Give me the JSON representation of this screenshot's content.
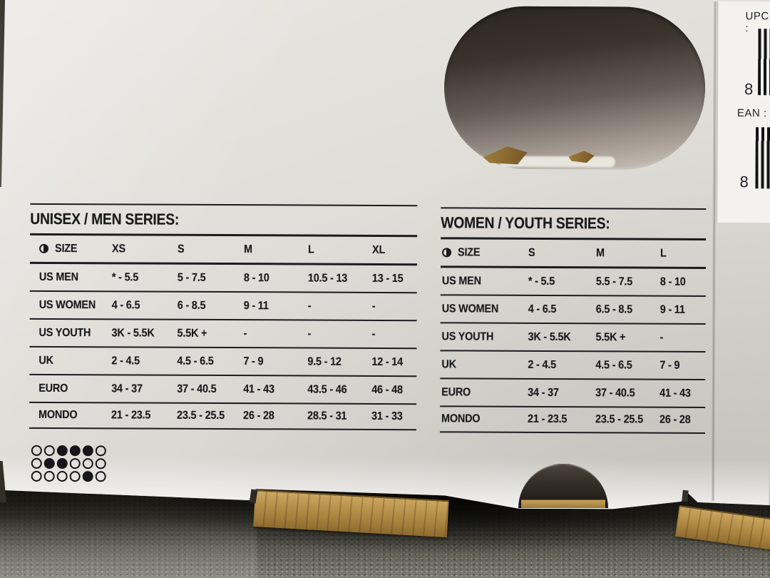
{
  "photo_subject": "shoebox lid with printed shoe size conversion charts, lying on carpet",
  "colors": {
    "ink": "#1b1b1d",
    "box_surface": "#dedbd6",
    "label_white": "#f3f2ef",
    "cardboard": "#ad8742",
    "carpet": "#85847b",
    "shadow": "#18170f"
  },
  "barcode_panel": {
    "upc_label": "UPC :",
    "upc_digit": "8",
    "ean_label": "EAN :",
    "ean_digit": "8"
  },
  "tables": [
    {
      "title": "UNISEX / MEN SERIES:",
      "size_icon": "half-filled-circle",
      "columns": [
        "SIZE",
        "XS",
        "S",
        "M",
        "L",
        "XL"
      ],
      "rows": [
        {
          "label": "US MEN",
          "values": [
            "* - 5.5",
            "5 - 7.5",
            "8 - 10",
            "10.5 - 13",
            "13 - 15"
          ]
        },
        {
          "label": "US WOMEN",
          "values": [
            "4 - 6.5",
            "6 - 8.5",
            "9 - 11",
            "-",
            "-"
          ]
        },
        {
          "label": "US YOUTH",
          "values": [
            "3K - 5.5K",
            "5.5K +",
            "-",
            "-",
            "-"
          ]
        },
        {
          "label": "UK",
          "values": [
            "2 - 4.5",
            "4.5 - 6.5",
            "7 - 9",
            "9.5 - 12",
            "12 - 14"
          ]
        },
        {
          "label": "EURO",
          "values": [
            "34 - 37",
            "37 - 40.5",
            "41 - 43",
            "43.5 - 46",
            "46 - 48"
          ]
        },
        {
          "label": "MONDO",
          "values": [
            "21 - 23.5",
            "23.5 - 25.5",
            "26 - 28",
            "28.5 - 31",
            "31 - 33"
          ]
        }
      ]
    },
    {
      "title": "WOMEN / YOUTH SERIES:",
      "size_icon": "half-filled-circle",
      "columns": [
        "SIZE",
        "S",
        "M",
        "L"
      ],
      "rows": [
        {
          "label": "US MEN",
          "values": [
            "* - 5.5",
            "5.5 - 7.5",
            "8 - 10"
          ]
        },
        {
          "label": "US WOMEN",
          "values": [
            "4 - 6.5",
            "6.5 - 8.5",
            "9 - 11"
          ]
        },
        {
          "label": "US YOUTH",
          "values": [
            "3K - 5.5K",
            "5.5K +",
            "-"
          ]
        },
        {
          "label": "UK",
          "values": [
            "2 - 4.5",
            "4.5 - 6.5",
            "7 - 9"
          ]
        },
        {
          "label": "EURO",
          "values": [
            "34 - 37",
            "37 - 40.5",
            "41 - 43"
          ]
        },
        {
          "label": "MONDO",
          "values": [
            "21 - 23.5",
            "23.5 - 25.5",
            "26 - 28"
          ]
        }
      ]
    }
  ],
  "dot_matrix": {
    "legend": "filled = 1, open = 0",
    "rows": [
      [
        0,
        0,
        1,
        1,
        1,
        0
      ],
      [
        0,
        1,
        1,
        0,
        0,
        0
      ],
      [
        0,
        0,
        0,
        0,
        1,
        0
      ]
    ]
  }
}
